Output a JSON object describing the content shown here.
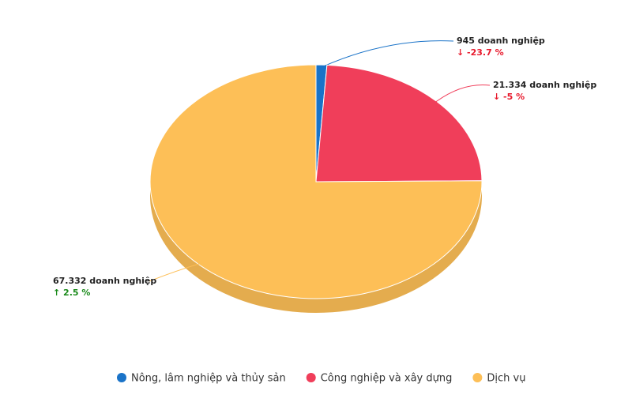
{
  "chart_data": {
    "type": "pie",
    "categories": [
      "Nông, lâm nghiệp và thủy sản",
      "Công nghiệp và xây dựng",
      "Dịch vụ"
    ],
    "values": [
      945,
      21334,
      67332
    ],
    "value_labels": [
      "945 doanh nghiệp",
      "21.334 doanh nghiệp",
      "67.332 doanh nghiệp"
    ],
    "changes": [
      -23.7,
      -5,
      2.5
    ],
    "change_labels": [
      "↓ -23.7 %",
      "↓ -5 %",
      "↑ 2.5 %"
    ],
    "colors": [
      "#1a73c8",
      "#f03e5a",
      "#fdbf57"
    ]
  }
}
